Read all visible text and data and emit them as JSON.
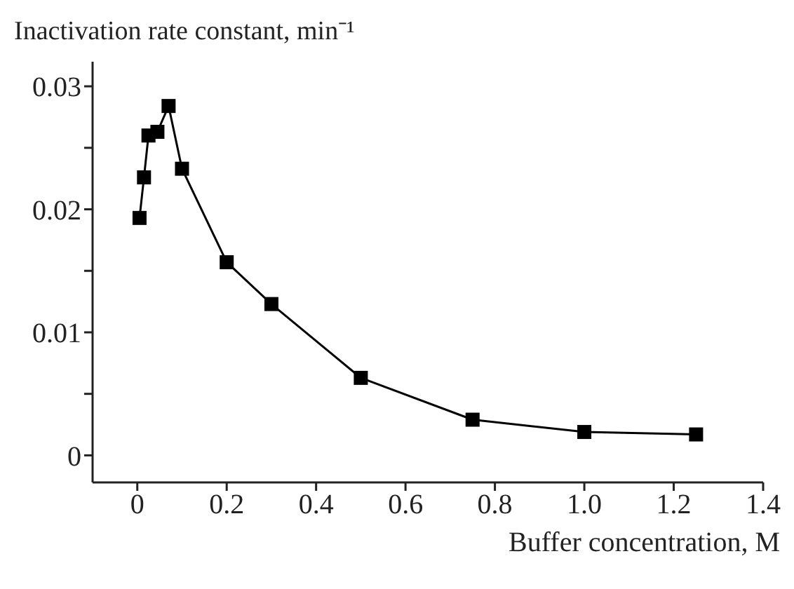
{
  "chart_data": {
    "type": "line",
    "ylabel": "Inactivation rate constant, min⁻¹",
    "xlabel": "Buffer concentration, M",
    "x": [
      0.005,
      0.015,
      0.025,
      0.045,
      0.07,
      0.1,
      0.2,
      0.3,
      0.5,
      0.75,
      1.0,
      1.25
    ],
    "series": [
      {
        "color": "#000000",
        "values": [
          0.0193,
          0.0226,
          0.026,
          0.0263,
          0.0284,
          0.0233,
          0.0157,
          0.0123,
          0.0063,
          0.0029,
          0.0019,
          0.0017
        ]
      }
    ],
    "xlim": [
      -0.1,
      1.4
    ],
    "xticks": [
      {
        "value": 0,
        "label": "0"
      },
      0.2,
      0.4,
      0.6,
      0.8,
      {
        "value": 1.0,
        "label": "1.0"
      },
      1.2,
      1.4
    ],
    "ylim": [
      -0.0022,
      0.032
    ],
    "yticks": [
      {
        "value": 0,
        "label": "0"
      },
      {
        "value": 0.005,
        "label": null
      },
      0.01,
      {
        "value": 0.015,
        "label": null
      },
      0.02,
      {
        "value": 0.025,
        "label": null
      },
      0.03
    ],
    "marker": "square",
    "line_style": "solid",
    "grid": false
  }
}
